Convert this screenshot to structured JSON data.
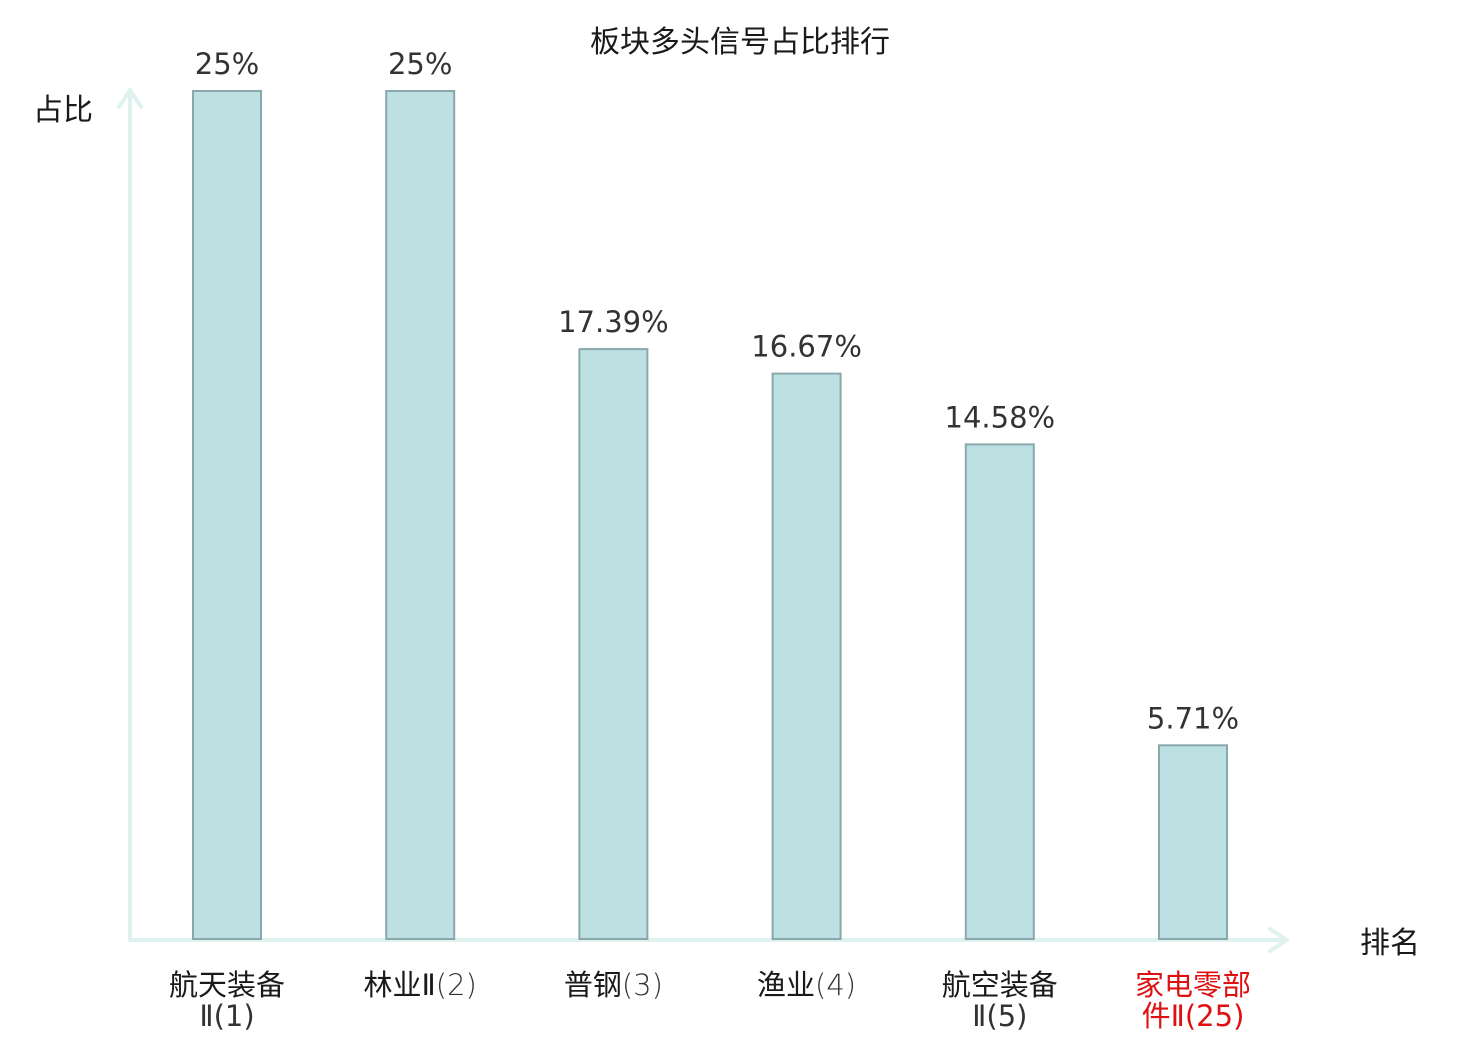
{
  "chart_data": {
    "type": "bar",
    "title": "板块多头信号占比排行",
    "ylabel": "占比",
    "xlabel": "排名",
    "ylim": [
      0,
      25
    ],
    "grid": false,
    "categories": [
      {
        "name": "航天装备",
        "name_rank": "Ⅱ(1)",
        "name_line2": "Ⅱ(1)",
        "highlight": false
      },
      {
        "name": "林业Ⅱ",
        "rank": "(2)",
        "highlight": false
      },
      {
        "name": "普钢",
        "rank": "(3)",
        "highlight": false
      },
      {
        "name": "渔业",
        "rank": "(4)",
        "highlight": false
      },
      {
        "name": "航空装备",
        "name_line2": "Ⅱ(5)",
        "highlight": false
      },
      {
        "name": "家电零部",
        "name_line2": "件Ⅱ(25)",
        "highlight": true
      }
    ],
    "values": [
      25,
      25,
      17.39,
      16.67,
      14.58,
      5.71
    ],
    "value_labels": [
      "25%",
      "25%",
      "17.39%",
      "16.67%",
      "14.58%",
      "5.71%"
    ],
    "colors": {
      "bar_fill": "#bde0e3",
      "bar_stroke": "#8aa8ab",
      "axis": "#e0f2ef",
      "text": "#1a1a1a",
      "value_text": "#333333",
      "highlight_text": "#dd1111"
    }
  }
}
